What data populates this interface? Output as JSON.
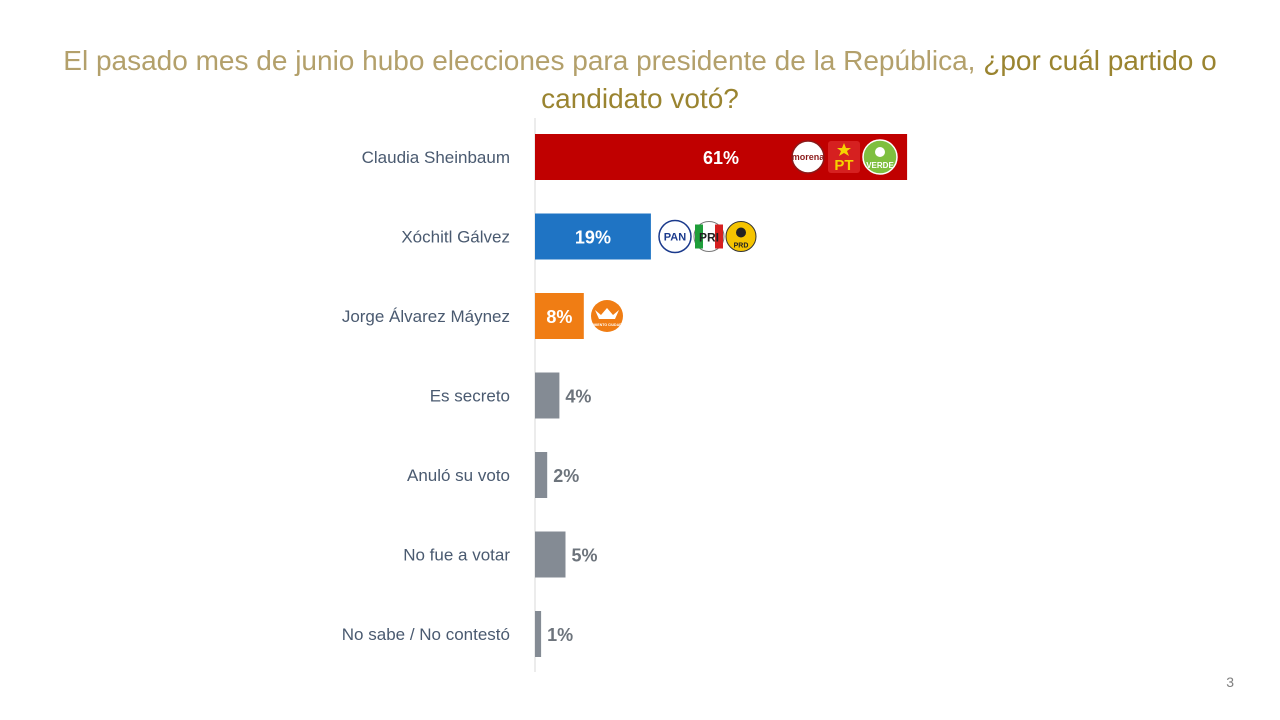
{
  "title": {
    "lead": "El pasado mes de junio hubo elecciones para presidente de la República, ",
    "question": "¿por cuál partido o candidato votó?"
  },
  "page_number": "3",
  "colors": {
    "sheinbaum": "#c00000",
    "galvez": "#1f74c4",
    "maynez": "#f07d14",
    "other": "#848b94",
    "axis": "#d9d9d9",
    "category_label": "#4a5a70"
  },
  "logos": {
    "sheinbaum": [
      "morena",
      "PT",
      "VERDE"
    ],
    "galvez": [
      "PAN",
      "PRI",
      "PRD"
    ],
    "maynez": [
      "MOVIMIENTO CIUDADANO"
    ]
  },
  "chart_data": {
    "type": "bar",
    "orientation": "horizontal",
    "categories": [
      "Claudia Sheinbaum",
      "Xóchitl Gálvez",
      "Jorge Álvarez Máynez",
      "Es secreto",
      "Anuló su voto",
      "No fue a votar",
      "No sabe / No contestó"
    ],
    "values": [
      61,
      19,
      8,
      4,
      2,
      5,
      1
    ],
    "data_labels": [
      "61%",
      "19%",
      "8%",
      "4%",
      "2%",
      "5%",
      "1%"
    ],
    "unit": "%",
    "xlim": [
      0,
      100
    ],
    "grid": false,
    "legend": "none"
  }
}
